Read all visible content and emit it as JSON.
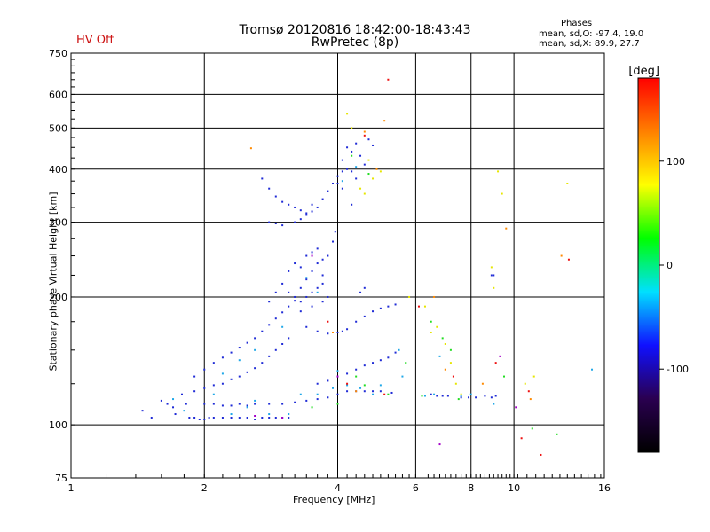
{
  "header": {
    "status": "HV Off",
    "stats_title": "Phases",
    "stats_line1": "mean, sd,O: -97.4, 19.0",
    "stats_line2": "mean, sd,X:  89.9, 27.7"
  },
  "chart_data": {
    "type": "scatter",
    "title": "Tromsø 20120816 18:42:00-18:43:43",
    "subtitle": "RwPretec (8p)",
    "xlabel": "Frequency [MHz]",
    "ylabel": "Stationary phase Virtual Height [km]",
    "x_scale": "log",
    "y_scale": "log",
    "xlim": [
      1,
      16
    ],
    "ylim": [
      75,
      750
    ],
    "x_ticks": [
      1,
      2,
      4,
      6,
      8,
      10,
      16
    ],
    "y_ticks": [
      75,
      100,
      200,
      300,
      400,
      500,
      600,
      750
    ],
    "grid": true,
    "colorbar": {
      "label": "[deg]",
      "ticks": [
        100,
        0,
        -100
      ],
      "range": [
        -180,
        180
      ],
      "colors": [
        "#000000",
        "#2a0050",
        "#1010ff",
        "#00e0ff",
        "#00ff00",
        "#ffff00",
        "#ff8000",
        "#ff0000"
      ]
    },
    "series": [
      {
        "color": "#1f2bd6",
        "points": [
          [
            1.45,
            108
          ],
          [
            1.52,
            104
          ],
          [
            1.6,
            114
          ],
          [
            1.65,
            112
          ],
          [
            1.7,
            110
          ],
          [
            1.72,
            106
          ],
          [
            1.78,
            118
          ],
          [
            1.82,
            112
          ],
          [
            1.85,
            104
          ],
          [
            1.9,
            104
          ],
          [
            1.95,
            103
          ],
          [
            2.0,
            103
          ],
          [
            2.05,
            104
          ],
          [
            2.1,
            104
          ],
          [
            2.2,
            104
          ],
          [
            2.3,
            104
          ],
          [
            2.4,
            104
          ],
          [
            2.5,
            104
          ],
          [
            2.6,
            103
          ],
          [
            2.7,
            104
          ],
          [
            2.8,
            104
          ],
          [
            2.9,
            104
          ],
          [
            3.0,
            104
          ],
          [
            3.1,
            104
          ],
          [
            2.0,
            112
          ],
          [
            2.1,
            112
          ],
          [
            2.2,
            111
          ],
          [
            2.3,
            111
          ],
          [
            2.4,
            112
          ],
          [
            2.5,
            111
          ],
          [
            2.6,
            112
          ],
          [
            2.8,
            112
          ],
          [
            3.0,
            112
          ],
          [
            3.2,
            113
          ],
          [
            3.4,
            114
          ],
          [
            3.6,
            115
          ],
          [
            3.8,
            116
          ],
          [
            4.0,
            118
          ],
          [
            4.2,
            120
          ],
          [
            4.4,
            120
          ],
          [
            4.6,
            120
          ],
          [
            4.8,
            120
          ],
          [
            5.0,
            120
          ],
          [
            5.3,
            119
          ],
          [
            1.9,
            120
          ],
          [
            2.0,
            122
          ],
          [
            2.1,
            124
          ],
          [
            2.2,
            125
          ],
          [
            2.3,
            128
          ],
          [
            2.4,
            130
          ],
          [
            2.5,
            133
          ],
          [
            2.6,
            136
          ],
          [
            2.7,
            140
          ],
          [
            2.8,
            145
          ],
          [
            2.9,
            150
          ],
          [
            3.0,
            155
          ],
          [
            3.1,
            160
          ],
          [
            1.9,
            130
          ],
          [
            2.0,
            135
          ],
          [
            2.1,
            140
          ],
          [
            2.2,
            144
          ],
          [
            2.3,
            148
          ],
          [
            2.4,
            152
          ],
          [
            2.5,
            156
          ],
          [
            2.6,
            160
          ],
          [
            2.7,
            166
          ],
          [
            2.8,
            172
          ],
          [
            2.9,
            178
          ],
          [
            3.0,
            184
          ],
          [
            3.1,
            190
          ],
          [
            3.2,
            196
          ],
          [
            2.8,
            195
          ],
          [
            2.9,
            205
          ],
          [
            3.0,
            215
          ],
          [
            3.1,
            205
          ],
          [
            3.2,
            200
          ],
          [
            3.3,
            210
          ],
          [
            3.4,
            220
          ],
          [
            3.5,
            230
          ],
          [
            3.6,
            240
          ],
          [
            3.7,
            245
          ],
          [
            3.8,
            250
          ],
          [
            3.3,
            195
          ],
          [
            3.4,
            200
          ],
          [
            3.5,
            205
          ],
          [
            3.6,
            210
          ],
          [
            3.7,
            215
          ],
          [
            3.1,
            230
          ],
          [
            3.2,
            240
          ],
          [
            3.3,
            235
          ],
          [
            3.4,
            250
          ],
          [
            3.5,
            255
          ],
          [
            3.6,
            260
          ],
          [
            3.7,
            225
          ],
          [
            3.8,
            200
          ],
          [
            3.9,
            270
          ],
          [
            3.95,
            285
          ],
          [
            3.3,
            185
          ],
          [
            3.5,
            190
          ],
          [
            3.7,
            195
          ],
          [
            2.7,
            380
          ],
          [
            2.8,
            360
          ],
          [
            2.9,
            345
          ],
          [
            3.0,
            335
          ],
          [
            3.1,
            330
          ],
          [
            3.2,
            325
          ],
          [
            3.3,
            320
          ],
          [
            3.4,
            315
          ],
          [
            3.5,
            318
          ],
          [
            3.6,
            325
          ],
          [
            3.7,
            340
          ],
          [
            3.8,
            355
          ],
          [
            3.9,
            370
          ],
          [
            4.0,
            385
          ],
          [
            4.1,
            395
          ],
          [
            2.8,
            300
          ],
          [
            2.9,
            298
          ],
          [
            3.0,
            295
          ],
          [
            3.2,
            300
          ],
          [
            3.3,
            305
          ],
          [
            3.4,
            312
          ],
          [
            3.5,
            330
          ],
          [
            3.4,
            170
          ],
          [
            3.6,
            166
          ],
          [
            3.8,
            164
          ],
          [
            4.0,
            165
          ],
          [
            4.1,
            166
          ],
          [
            4.2,
            168
          ],
          [
            4.4,
            175
          ],
          [
            4.6,
            180
          ],
          [
            4.8,
            185
          ],
          [
            5.0,
            188
          ],
          [
            5.2,
            190
          ],
          [
            5.4,
            192
          ],
          [
            3.6,
            125
          ],
          [
            3.8,
            127
          ],
          [
            4.0,
            130
          ],
          [
            4.2,
            132
          ],
          [
            4.4,
            135
          ],
          [
            4.6,
            138
          ],
          [
            4.8,
            140
          ],
          [
            5.0,
            142
          ],
          [
            5.2,
            144
          ],
          [
            5.4,
            148
          ],
          [
            4.1,
            420
          ],
          [
            4.2,
            450
          ],
          [
            4.3,
            440
          ],
          [
            4.4,
            460
          ],
          [
            4.5,
            430
          ],
          [
            4.6,
            410
          ],
          [
            4.2,
            400
          ],
          [
            4.3,
            395
          ],
          [
            4.0,
            370
          ],
          [
            4.1,
            360
          ],
          [
            4.4,
            380
          ],
          [
            4.7,
            470
          ],
          [
            4.8,
            455
          ],
          [
            6.5,
            118
          ],
          [
            6.7,
            117
          ],
          [
            6.9,
            117
          ],
          [
            7.1,
            117
          ],
          [
            7.6,
            116
          ],
          [
            7.9,
            116
          ],
          [
            8.2,
            116
          ],
          [
            8.6,
            117
          ],
          [
            8.9,
            116
          ],
          [
            9.1,
            117
          ],
          [
            8.9,
            225
          ],
          [
            9.0,
            225
          ],
          [
            4.5,
            205
          ],
          [
            4.6,
            210
          ],
          [
            4.3,
            330
          ]
        ]
      },
      {
        "color": "#1fa8e8",
        "points": [
          [
            1.7,
            115
          ],
          [
            1.8,
            108
          ],
          [
            2.1,
            118
          ],
          [
            2.3,
            106
          ],
          [
            2.5,
            110
          ],
          [
            2.6,
            114
          ],
          [
            2.8,
            106
          ],
          [
            3.1,
            106
          ],
          [
            2.2,
            132
          ],
          [
            2.4,
            142
          ],
          [
            2.6,
            150
          ],
          [
            3.0,
            170
          ],
          [
            3.3,
            118
          ],
          [
            3.6,
            118
          ],
          [
            3.9,
            122
          ],
          [
            4.0,
            134
          ],
          [
            4.2,
            124
          ],
          [
            4.5,
            122
          ],
          [
            4.8,
            118
          ],
          [
            5.0,
            124
          ],
          [
            5.5,
            150
          ],
          [
            5.6,
            130
          ],
          [
            6.3,
            117
          ],
          [
            6.6,
            118
          ],
          [
            7.6,
            117
          ],
          [
            8.0,
            118
          ],
          [
            3.4,
            222
          ],
          [
            3.6,
            205
          ],
          [
            4.1,
            375
          ],
          [
            4.4,
            405
          ],
          [
            6.8,
            145
          ],
          [
            9.0,
            112
          ],
          [
            15.0,
            135
          ]
        ]
      },
      {
        "color": "#22dd22",
        "points": [
          [
            3.5,
            110
          ],
          [
            4.0,
            112
          ],
          [
            4.4,
            130
          ],
          [
            4.6,
            124
          ],
          [
            5.2,
            118
          ],
          [
            5.7,
            140
          ],
          [
            6.2,
            117
          ],
          [
            6.5,
            175
          ],
          [
            6.9,
            160
          ],
          [
            7.2,
            150
          ],
          [
            4.3,
            430
          ],
          [
            4.7,
            390
          ],
          [
            7.5,
            115
          ],
          [
            11.0,
            98
          ],
          [
            12.5,
            95
          ],
          [
            9.5,
            130
          ]
        ]
      },
      {
        "color": "#e6e600",
        "points": [
          [
            4.2,
            540
          ],
          [
            4.3,
            500
          ],
          [
            4.5,
            360
          ],
          [
            4.6,
            350
          ],
          [
            4.8,
            380
          ],
          [
            5.0,
            395
          ],
          [
            4.7,
            420
          ],
          [
            6.5,
            165
          ],
          [
            6.7,
            170
          ],
          [
            7.0,
            155
          ],
          [
            7.2,
            140
          ],
          [
            7.4,
            125
          ],
          [
            7.6,
            118
          ],
          [
            9.2,
            395
          ],
          [
            9.4,
            350
          ],
          [
            8.9,
            235
          ],
          [
            6.3,
            190
          ],
          [
            10.6,
            125
          ],
          [
            11.1,
            130
          ],
          [
            13.2,
            370
          ],
          [
            9.0,
            210
          ],
          [
            5.8,
            200
          ]
        ]
      },
      {
        "color": "#ff8a00",
        "points": [
          [
            4.6,
            490
          ],
          [
            4.9,
            400
          ],
          [
            5.1,
            520
          ],
          [
            2.55,
            448
          ],
          [
            6.6,
            200
          ],
          [
            7.0,
            135
          ],
          [
            8.5,
            125
          ],
          [
            9.6,
            290
          ],
          [
            10.9,
            115
          ],
          [
            12.8,
            250
          ],
          [
            3.9,
            165
          ],
          [
            4.4,
            120
          ]
        ]
      },
      {
        "color": "#ee1010",
        "points": [
          [
            5.2,
            650
          ],
          [
            4.6,
            480
          ],
          [
            3.8,
            175
          ],
          [
            5.1,
            118
          ],
          [
            6.1,
            190
          ],
          [
            7.3,
            130
          ],
          [
            9.1,
            140
          ],
          [
            10.4,
            93
          ],
          [
            11.5,
            85
          ],
          [
            10.8,
            120
          ],
          [
            13.3,
            245
          ],
          [
            4.2,
            125
          ]
        ]
      },
      {
        "color": "#a400c8",
        "points": [
          [
            2.6,
            105
          ],
          [
            3.0,
            104
          ],
          [
            3.5,
            250
          ],
          [
            4.0,
            130
          ],
          [
            9.3,
            145
          ],
          [
            6.8,
            90
          ],
          [
            10.1,
            110
          ]
        ]
      }
    ]
  }
}
